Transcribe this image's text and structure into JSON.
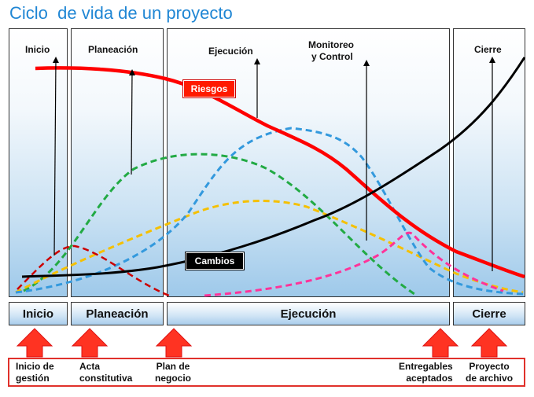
{
  "title": "Ciclo  de vida de un proyecto",
  "phase_labels": {
    "inicio": "Inicio",
    "planeacion": "Planeación",
    "ejecucion": "Ejecución",
    "monitoreo_1": "Monitoreo",
    "monitoreo_2": "y Control",
    "cierre": "Cierre"
  },
  "curve_labels": {
    "riesgos": "Riesgos",
    "cambios": "Cambios"
  },
  "phase_bar": {
    "inicio": "Inicio",
    "planeacion": "Planeación",
    "ejecucion": "Ejecución",
    "cierre": "Cierre"
  },
  "deliverables": [
    {
      "line1": "Inicio de",
      "line2": "gestión"
    },
    {
      "line1": "Acta",
      "line2": "constitutiva"
    },
    {
      "line1": "Plan de",
      "line2": "negocio"
    },
    {
      "line1": "Entregables",
      "line2": "aceptados"
    },
    {
      "line1": "Proyecto",
      "line2": "de archivo"
    }
  ],
  "colors": {
    "title": "#1f86d4",
    "riesgos": "#ff0000",
    "cambios": "#000000",
    "inicio_curve": "#cc0000",
    "planeacion_curve": "#22aa44",
    "ejecucion_curve": "#f5c000",
    "monitoreo_curve": "#3399dd",
    "cierre_curve": "#ff3399",
    "arrow_fill": "#ff3322",
    "border_red": "#e0312b"
  }
}
